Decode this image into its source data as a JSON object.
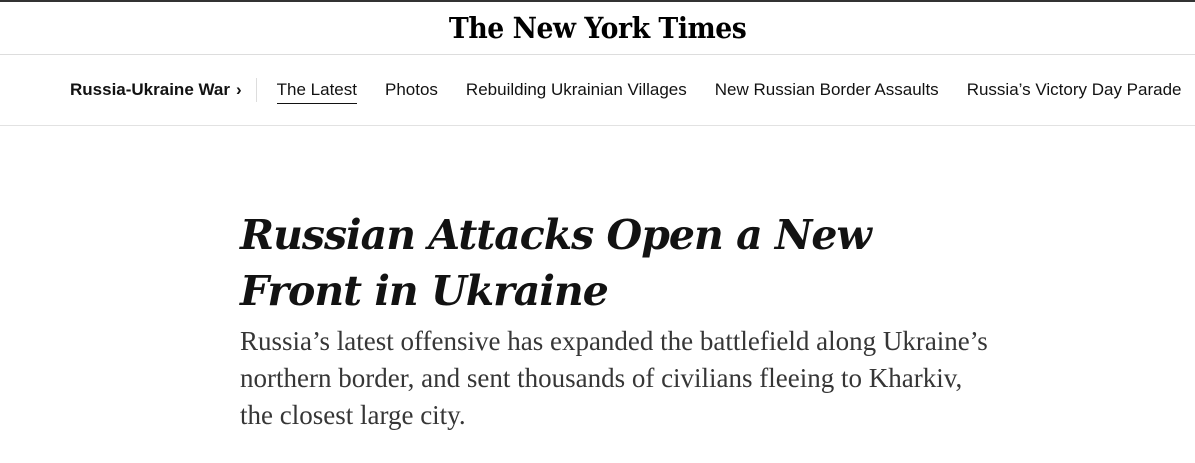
{
  "masthead": {
    "logo": "The New York Times"
  },
  "nav": {
    "section": "Russia-Ukraine War",
    "section_chevron": "›",
    "items": [
      {
        "label": "The Latest",
        "active": true
      },
      {
        "label": "Photos"
      },
      {
        "label": "Rebuilding Ukrainian Villages"
      },
      {
        "label": "New Russian Border Assaults"
      },
      {
        "label": "Russia’s Victory Day Parade"
      }
    ]
  },
  "article": {
    "headline": "Russian Attacks Open a New Front in Ukraine",
    "summary": "Russia’s latest offensive has expanded the battlefield along Ukraine’s northern border, and sent thousands of civilians fleeing to Kharkiv, the closest large city."
  }
}
